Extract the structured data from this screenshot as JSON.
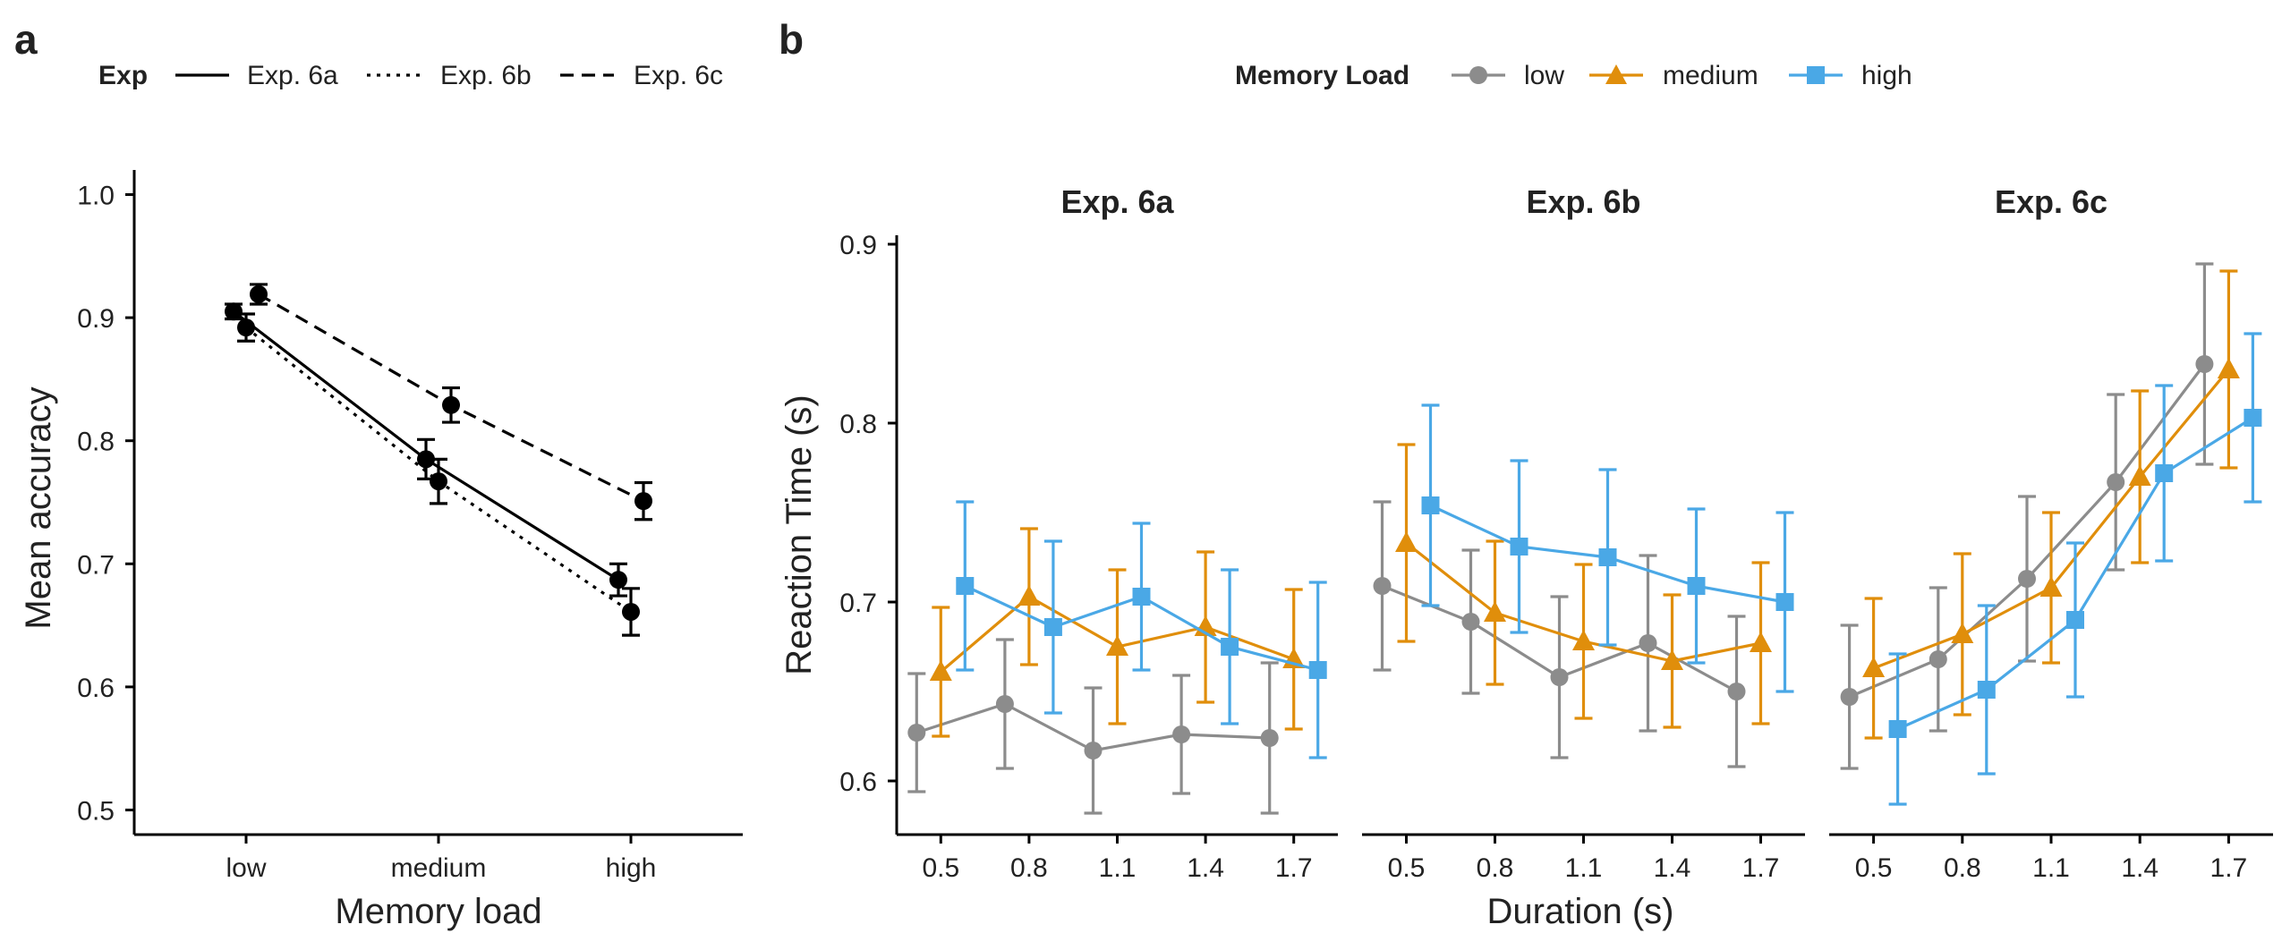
{
  "panels": {
    "a": {
      "letter": "a"
    },
    "b": {
      "letter": "b"
    }
  },
  "legend_a": {
    "title": "Exp",
    "entries": [
      "Exp. 6a",
      "Exp. 6b",
      "Exp. 6c"
    ]
  },
  "legend_b": {
    "title": "Memory Load",
    "entries": [
      "low",
      "medium",
      "high"
    ]
  },
  "colors": {
    "low": "#8c8c8c",
    "medium": "#e08e0b",
    "high": "#4aa8e6",
    "panel_a_series": "#000000"
  },
  "chart_data": [
    {
      "type": "line",
      "panel": "a",
      "xlabel": "Memory load",
      "ylabel": "Mean accuracy",
      "categories": [
        "low",
        "medium",
        "high"
      ],
      "ylim": [
        0.48,
        1.02
      ],
      "yticks": [
        0.5,
        0.6,
        0.7,
        0.8,
        0.9,
        1.0
      ],
      "grid": false,
      "legend_position": "top",
      "series": [
        {
          "name": "Exp. 6a",
          "linestyle": "solid",
          "values": [
            0.905,
            0.785,
            0.687
          ],
          "err": [
            0.006,
            0.016,
            0.013
          ]
        },
        {
          "name": "Exp. 6b",
          "linestyle": "dotted",
          "values": [
            0.892,
            0.767,
            0.661
          ],
          "err": [
            0.011,
            0.018,
            0.019
          ]
        },
        {
          "name": "Exp. 6c",
          "linestyle": "dashed",
          "values": [
            0.919,
            0.829,
            0.751
          ],
          "err": [
            0.008,
            0.014,
            0.015
          ]
        }
      ]
    },
    {
      "type": "line",
      "panel": "b",
      "xlabel": "Duration (s)",
      "ylabel": "Reaction Time (s)",
      "x": [
        0.5,
        0.8,
        1.1,
        1.4,
        1.7
      ],
      "xlim": [
        0.35,
        1.85
      ],
      "ylim": [
        0.57,
        0.905
      ],
      "yticks": [
        0.6,
        0.7,
        0.8,
        0.9
      ],
      "grid": false,
      "legend_position": "top",
      "facets": [
        {
          "title": "Exp. 6a",
          "series": [
            {
              "name": "low",
              "values": [
                0.627,
                0.643,
                0.617,
                0.626,
                0.624
              ],
              "err": [
                0.033,
                0.036,
                0.035,
                0.033,
                0.042
              ]
            },
            {
              "name": "medium",
              "values": [
                0.661,
                0.703,
                0.675,
                0.686,
                0.668
              ],
              "err": [
                0.036,
                0.038,
                0.043,
                0.042,
                0.039
              ]
            },
            {
              "name": "high",
              "values": [
                0.709,
                0.686,
                0.703,
                0.675,
                0.662
              ],
              "err": [
                0.047,
                0.048,
                0.041,
                0.043,
                0.049
              ]
            }
          ]
        },
        {
          "title": "Exp. 6b",
          "series": [
            {
              "name": "low",
              "values": [
                0.709,
                0.689,
                0.658,
                0.677,
                0.65
              ],
              "err": [
                0.047,
                0.04,
                0.045,
                0.049,
                0.042
              ]
            },
            {
              "name": "medium",
              "values": [
                0.733,
                0.694,
                0.678,
                0.667,
                0.677
              ],
              "err": [
                0.055,
                0.04,
                0.043,
                0.037,
                0.045
              ]
            },
            {
              "name": "high",
              "values": [
                0.754,
                0.731,
                0.725,
                0.709,
                0.7
              ],
              "err": [
                0.056,
                0.048,
                0.049,
                0.043,
                0.05
              ]
            }
          ]
        },
        {
          "title": "Exp. 6c",
          "series": [
            {
              "name": "low",
              "values": [
                0.647,
                0.668,
                0.713,
                0.767,
                0.833
              ],
              "err": [
                0.04,
                0.04,
                0.046,
                0.049,
                0.056
              ]
            },
            {
              "name": "medium",
              "values": [
                0.663,
                0.682,
                0.708,
                0.77,
                0.83
              ],
              "err": [
                0.039,
                0.045,
                0.042,
                0.048,
                0.055
              ]
            },
            {
              "name": "high",
              "values": [
                0.629,
                0.651,
                0.69,
                0.772,
                0.803
              ],
              "err": [
                0.042,
                0.047,
                0.043,
                0.049,
                0.047
              ]
            }
          ]
        }
      ]
    }
  ]
}
